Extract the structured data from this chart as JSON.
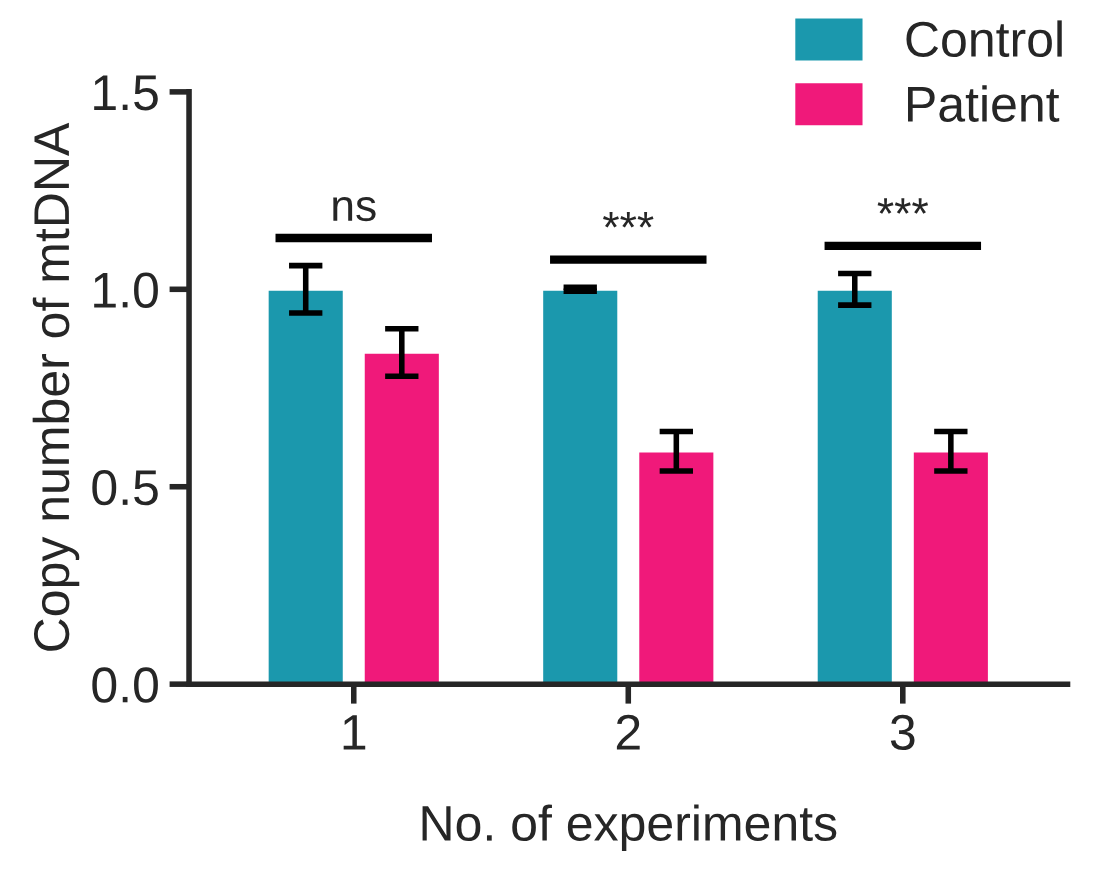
{
  "chart_data": {
    "type": "bar",
    "xlabel": "No. of experiments",
    "ylabel": "Copy number of mtDNA",
    "categories": [
      "1",
      "2",
      "3"
    ],
    "series": [
      {
        "name": "Control",
        "color": "#1b98ad",
        "values": [
          1.0,
          1.0,
          1.0
        ],
        "errors": [
          0.06,
          0.005,
          0.04
        ]
      },
      {
        "name": "Patient",
        "color": "#f0197a",
        "values": [
          0.84,
          0.59,
          0.59
        ],
        "errors": [
          0.06,
          0.05,
          0.05
        ]
      }
    ],
    "ylim": [
      0,
      1.5
    ],
    "yticks": [
      {
        "value": 0,
        "label": "0.0"
      },
      0.5,
      {
        "value": 1,
        "label": "1.0"
      },
      1.5
    ],
    "annotations": [
      "ns",
      "***",
      "***"
    ],
    "legend": "top right",
    "grid": false
  }
}
